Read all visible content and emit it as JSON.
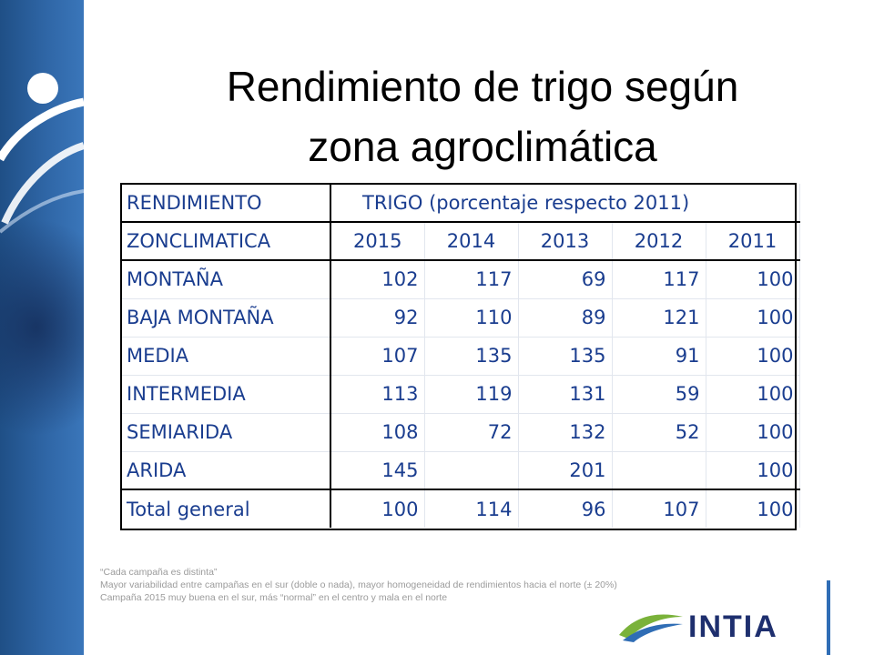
{
  "slide": {
    "title_line1": "Rendimiento de trigo según",
    "title_line2": "zona agroclimática"
  },
  "table": {
    "header_left": "RENDIMIENTO",
    "header_right": "TRIGO  (porcentaje respecto 2011)",
    "subheader_label": "ZONCLIMATICA",
    "years": [
      "2015",
      "2014",
      "2013",
      "2012",
      "2011"
    ],
    "rows": [
      {
        "zone": "MONTAÑA",
        "values": [
          "102",
          "117",
          "69",
          "117",
          "100"
        ]
      },
      {
        "zone": "BAJA MONTAÑA",
        "values": [
          "92",
          "110",
          "89",
          "121",
          "100"
        ]
      },
      {
        "zone": "MEDIA",
        "values": [
          "107",
          "135",
          "135",
          "91",
          "100"
        ]
      },
      {
        "zone": "INTERMEDIA",
        "values": [
          "113",
          "119",
          "131",
          "59",
          "100"
        ]
      },
      {
        "zone": "SEMIARIDA",
        "values": [
          "108",
          "72",
          "132",
          "52",
          "100"
        ]
      },
      {
        "zone": "ARIDA",
        "values": [
          "145",
          "",
          "201",
          "",
          "100"
        ]
      }
    ],
    "total": {
      "zone": "Total general",
      "values": [
        "100",
        "114",
        "96",
        "107",
        "100"
      ]
    }
  },
  "notes": {
    "line1": "“Cada campaña es distinta”",
    "line2": "Mayor variabilidad entre campañas en el sur (doble o nada), mayor homogeneidad de rendimientos hacia el norte (± 20%)",
    "line3": "Campaña 2015 muy buena en el sur, más “normal” en el centro y mala en el norte"
  },
  "logo": {
    "text": "INTIA"
  },
  "colors": {
    "band": "#2f66a6",
    "table_text": "#1a3d8f",
    "logo_green": "#7ab23a",
    "logo_blue": "#1e2f6e"
  }
}
